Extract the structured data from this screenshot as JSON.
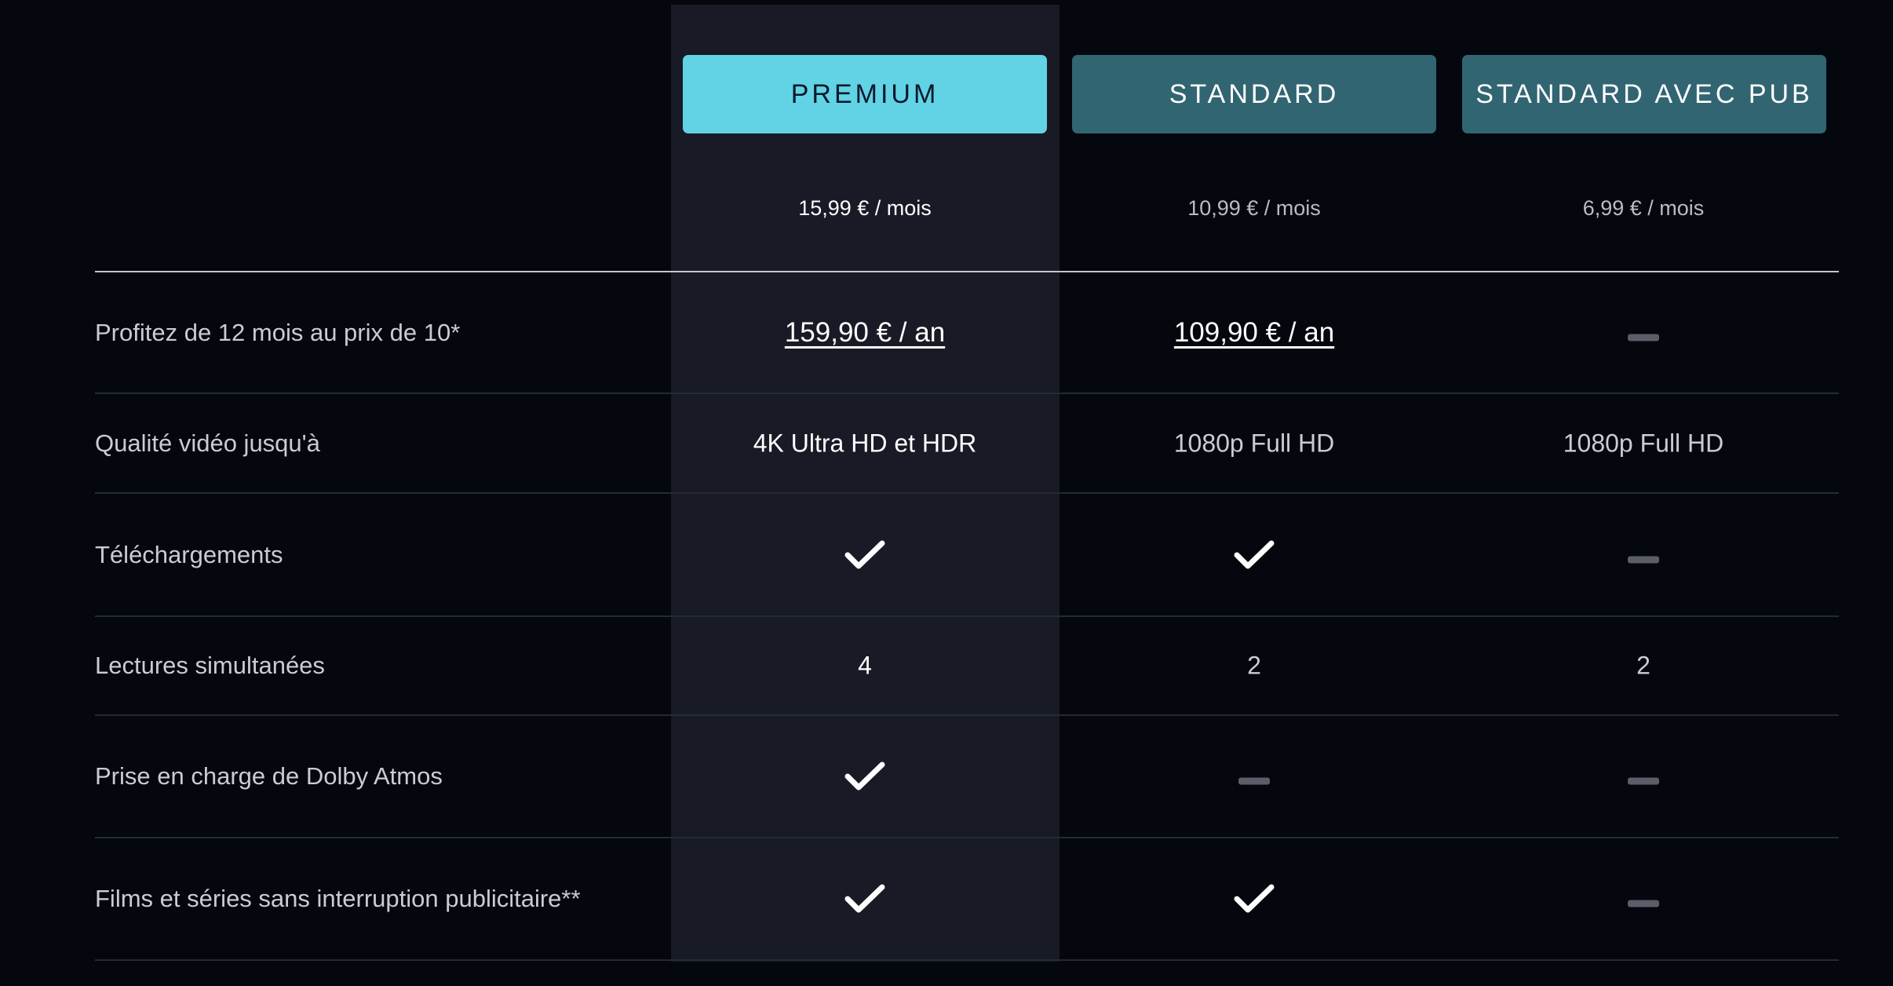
{
  "plans": [
    {
      "name": "PREMIUM",
      "price": "15,99 € / mois",
      "active": true
    },
    {
      "name": "STANDARD",
      "price": "10,99 € / mois",
      "active": false
    },
    {
      "name": "STANDARD AVEC PUB",
      "price": "6,99 € / mois",
      "active": false
    }
  ],
  "colors": {
    "background": "#05070f",
    "premium_column": "#181b26",
    "premium_button": "#62d3e5",
    "plan_button": "#326572",
    "dash": "#5b5e68"
  },
  "rows": [
    {
      "label": "Profitez de 12 mois au prix de 10*",
      "values": [
        {
          "type": "link",
          "text": "159,90 € / an"
        },
        {
          "type": "link",
          "text": "109,90 € / an"
        },
        {
          "type": "dash",
          "icon": "dash-icon"
        }
      ]
    },
    {
      "label": "Qualité vidéo jusqu'à",
      "values": [
        {
          "type": "text",
          "text": "4K Ultra HD et HDR"
        },
        {
          "type": "text",
          "text": "1080p Full HD"
        },
        {
          "type": "text",
          "text": "1080p Full HD"
        }
      ]
    },
    {
      "label": "Téléchargements",
      "values": [
        {
          "type": "check",
          "icon": "check-icon"
        },
        {
          "type": "check",
          "icon": "check-icon"
        },
        {
          "type": "dash",
          "icon": "dash-icon"
        }
      ]
    },
    {
      "label": "Lectures simultanées",
      "values": [
        {
          "type": "text",
          "text": "4"
        },
        {
          "type": "text",
          "text": "2"
        },
        {
          "type": "text",
          "text": "2"
        }
      ]
    },
    {
      "label": "Prise en charge de Dolby Atmos",
      "values": [
        {
          "type": "check",
          "icon": "check-icon"
        },
        {
          "type": "dash",
          "icon": "dash-icon"
        },
        {
          "type": "dash",
          "icon": "dash-icon"
        }
      ]
    },
    {
      "label": "Films et séries sans interruption publicitaire**",
      "values": [
        {
          "type": "check",
          "icon": "check-icon"
        },
        {
          "type": "check",
          "icon": "check-icon"
        },
        {
          "type": "dash",
          "icon": "dash-icon"
        }
      ]
    }
  ]
}
